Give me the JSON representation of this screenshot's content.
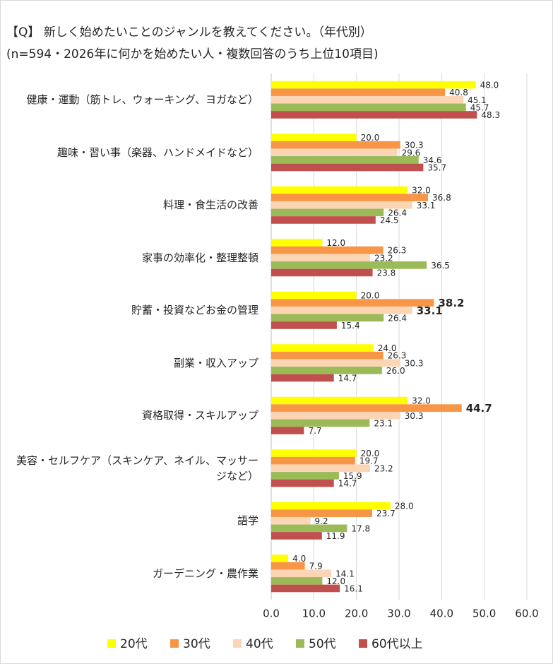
{
  "chart_data": {
    "type": "hbar",
    "title": "【Q】 新しく始めたいことのジャンルを教えてください。（年代別）",
    "subtitle": "(n=594・2026年に何かを始めたい人・複数回答のうち上位10項目)",
    "categories": [
      "健康・運動（筋トレ、ウォーキング、ヨガなど）",
      "趣味・習い事（楽器、ハンドメイドなど）",
      "料理・食生活の改善",
      "家事の効率化・整理整頓",
      "貯蓄・投資などお金の管理",
      "副業・収入アップ",
      "資格取得・スキルアップ",
      "美容・セルフケア（スキンケア、ネイル、マッサージなど）",
      "語学",
      "ガーデニング・農作業"
    ],
    "series": [
      {
        "name": "20代",
        "color": "#ffff00",
        "values": [
          48.0,
          20.0,
          32.0,
          12.0,
          20.0,
          24.0,
          32.0,
          20.0,
          28.0,
          4.0
        ],
        "value_labels": [
          "48.0",
          "20.0",
          "32.0",
          "12.0",
          "20.0",
          "24.0",
          "32.0",
          "20.0",
          "28.0",
          "4.0"
        ]
      },
      {
        "name": "30代",
        "color": "#f79646",
        "values": [
          40.8,
          30.3,
          36.8,
          26.3,
          38.2,
          26.3,
          44.7,
          19.7,
          23.7,
          7.9
        ],
        "value_labels": [
          "40.8",
          "30.3",
          "36.8",
          "26.3",
          "38.2",
          "26.3",
          "44.7",
          "19.7",
          "23.7",
          "7.9"
        ],
        "value_label_colors": [
          "#262626",
          "#262626",
          "#262626",
          "#262626",
          "#ff0000",
          "#262626",
          "#ff0000",
          "#262626",
          "#262626",
          "#262626"
        ]
      },
      {
        "name": "40代",
        "color": "#fcd5b5",
        "values": [
          45.1,
          29.6,
          33.1,
          23.2,
          33.1,
          30.3,
          30.3,
          23.2,
          9.2,
          14.1
        ],
        "value_labels": [
          "45.1",
          "29.6",
          "33.1",
          "23.2",
          "33.1",
          "30.3",
          "30.3",
          "23.2",
          "9.2",
          "14.1"
        ],
        "value_label_colors": [
          "#262626",
          "#262626",
          "#262626",
          "#262626",
          "#ff0000",
          "#262626",
          "#262626",
          "#262626",
          "#262626",
          "#262626"
        ]
      },
      {
        "name": "50代",
        "color": "#9bbb59",
        "values": [
          45.7,
          34.6,
          26.4,
          36.5,
          26.4,
          26.0,
          23.1,
          15.9,
          17.8,
          12.0
        ],
        "value_labels": [
          "45.7",
          "34.6",
          "26.4",
          "36.5",
          "26.4",
          "26.0",
          "23.1",
          "15.9",
          "17.8",
          "12.0"
        ]
      },
      {
        "name": "60代以上",
        "color": "#c0504d",
        "values": [
          48.3,
          35.7,
          24.5,
          23.8,
          15.4,
          14.7,
          7.7,
          14.7,
          11.9,
          16.1
        ],
        "value_labels": [
          "48.3",
          "35.7",
          "24.5",
          "23.8",
          "15.4",
          "14.7",
          "7.7",
          "14.7",
          "11.9",
          "16.1"
        ]
      }
    ],
    "value_label_color": "#262626",
    "xlim": [
      0,
      60
    ],
    "xticks": [
      {
        "value": 0,
        "label": "0.0"
      },
      {
        "value": 10,
        "label": "10.0"
      },
      {
        "value": 20,
        "label": "20.0"
      },
      {
        "value": 30,
        "label": "30.0"
      },
      {
        "value": 40,
        "label": "40.0"
      },
      {
        "value": 50,
        "label": "50.0"
      },
      {
        "value": 60,
        "label": "60.0"
      }
    ],
    "grid": true,
    "legend": "bottom"
  }
}
